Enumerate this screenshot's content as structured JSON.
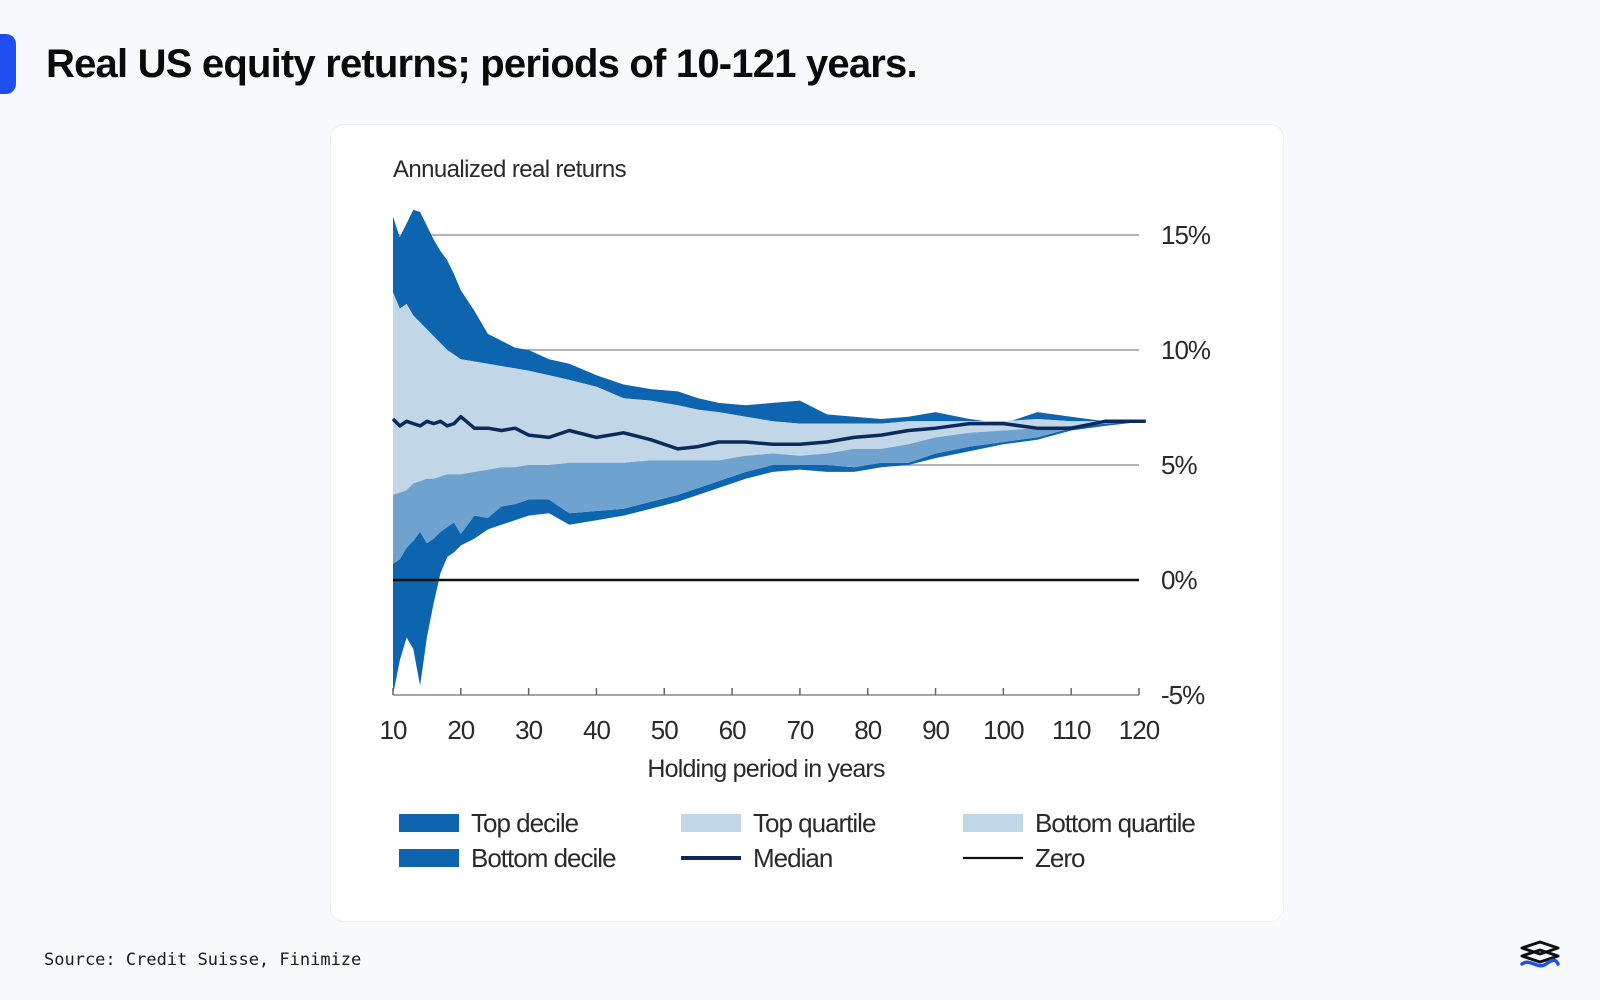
{
  "page": {
    "title": "Real US equity returns; periods of 10-121 years.",
    "source": "Source: Credit Suisse, Finimize"
  },
  "colors": {
    "accent": "#1f4ff0",
    "decile": "#0d65b0",
    "quartile": "#c1d7e8",
    "median": "#0b2a5b",
    "zero": "#111111",
    "grid": "#9a9a9a"
  },
  "icons": {
    "brand": "finimize-logo-icon"
  },
  "chart_data": {
    "type": "area",
    "title": "Annualized real returns",
    "xlabel": "Holding period in years",
    "ylabel": "",
    "xlim": [
      10,
      121
    ],
    "ylim": [
      -5,
      15
    ],
    "x_ticks": [
      10,
      20,
      30,
      40,
      50,
      60,
      70,
      80,
      90,
      100,
      110,
      120
    ],
    "y_ticks": [
      15,
      10,
      5,
      0,
      -5
    ],
    "y_tick_labels": [
      "15%",
      "10%",
      "5%",
      "0%",
      "-5%"
    ],
    "grid": {
      "y": true,
      "x": false
    },
    "x": [
      10,
      11,
      12,
      13,
      14,
      15,
      16,
      17,
      18,
      19,
      20,
      22,
      24,
      26,
      28,
      30,
      33,
      36,
      40,
      44,
      48,
      52,
      55,
      58,
      62,
      66,
      70,
      74,
      78,
      82,
      86,
      90,
      95,
      100,
      105,
      110,
      115,
      121
    ],
    "series": [
      {
        "name": "Top decile",
        "values": [
          15.8,
          14.9,
          15.5,
          16.1,
          16.0,
          15.4,
          14.8,
          14.3,
          13.9,
          13.3,
          12.6,
          11.7,
          10.7,
          10.4,
          10.1,
          10.0,
          9.6,
          9.4,
          8.9,
          8.5,
          8.3,
          8.2,
          7.9,
          7.7,
          7.6,
          7.7,
          7.8,
          7.2,
          7.1,
          7.0,
          7.1,
          7.3,
          7.0,
          6.8,
          7.3,
          7.1,
          6.9,
          6.9
        ]
      },
      {
        "name": "Top quartile",
        "values": [
          12.5,
          11.8,
          12.0,
          11.5,
          11.2,
          10.9,
          10.6,
          10.3,
          10.0,
          9.8,
          9.6,
          9.5,
          9.4,
          9.3,
          9.2,
          9.1,
          8.9,
          8.7,
          8.4,
          7.9,
          7.8,
          7.6,
          7.4,
          7.3,
          7.1,
          6.9,
          6.8,
          6.8,
          6.8,
          6.8,
          6.9,
          6.9,
          6.9,
          6.9,
          7.0,
          6.9,
          6.9,
          6.9
        ]
      },
      {
        "name": "Median",
        "values": [
          7.0,
          6.7,
          6.9,
          6.8,
          6.7,
          6.9,
          6.8,
          6.9,
          6.7,
          6.8,
          7.1,
          6.6,
          6.6,
          6.5,
          6.6,
          6.3,
          6.2,
          6.5,
          6.2,
          6.4,
          6.1,
          5.7,
          5.8,
          6.0,
          6.0,
          5.9,
          5.9,
          6.0,
          6.2,
          6.3,
          6.5,
          6.6,
          6.8,
          6.8,
          6.6,
          6.6,
          6.9,
          6.9
        ]
      },
      {
        "name": "Bottom quartile",
        "values": [
          3.7,
          3.8,
          3.9,
          4.2,
          4.3,
          4.4,
          4.4,
          4.5,
          4.6,
          4.6,
          4.6,
          4.7,
          4.8,
          4.9,
          4.9,
          5.0,
          5.0,
          5.1,
          5.1,
          5.1,
          5.2,
          5.2,
          5.2,
          5.2,
          5.4,
          5.5,
          5.4,
          5.5,
          5.7,
          5.7,
          5.9,
          6.2,
          6.4,
          6.5,
          6.6,
          6.7,
          6.8,
          6.9
        ]
      },
      {
        "name": "Bottom decile",
        "values": [
          0.7,
          0.9,
          1.4,
          1.7,
          2.1,
          1.6,
          1.8,
          2.1,
          2.3,
          2.5,
          2.0,
          2.8,
          2.7,
          3.2,
          3.3,
          3.5,
          3.5,
          2.9,
          3.0,
          3.1,
          3.4,
          3.7,
          4.0,
          4.3,
          4.7,
          5.0,
          5.0,
          5.0,
          4.9,
          5.1,
          5.1,
          5.5,
          5.8,
          6.0,
          6.2,
          6.6,
          6.8,
          6.9
        ]
      },
      {
        "name": "Bottom decile (lower bound)",
        "values": [
          -5.0,
          -3.5,
          -2.5,
          -3.0,
          -4.6,
          -2.5,
          -1.0,
          0.3,
          1.0,
          1.2,
          1.5,
          1.8,
          2.2,
          2.4,
          2.6,
          2.8,
          2.9,
          2.4,
          2.6,
          2.8,
          3.1,
          3.4,
          3.7,
          4.0,
          4.4,
          4.7,
          4.8,
          4.7,
          4.7,
          4.9,
          5.0,
          5.3,
          5.6,
          5.9,
          6.1,
          6.5,
          6.7,
          6.9
        ]
      }
    ],
    "legend": {
      "placement": "bottom",
      "items": [
        {
          "label": "Top decile",
          "kind": "band",
          "color": "#0d65b0"
        },
        {
          "label": "Top quartile",
          "kind": "band",
          "color": "#c1d7e8"
        },
        {
          "label": "Bottom quartile",
          "kind": "band",
          "color": "#c1d7e8"
        },
        {
          "label": "Bottom decile",
          "kind": "band",
          "color": "#0d65b0"
        },
        {
          "label": "Median",
          "kind": "line",
          "color": "#0b2a5b"
        },
        {
          "label": "Zero",
          "kind": "thin-line",
          "color": "#111111"
        }
      ]
    }
  }
}
